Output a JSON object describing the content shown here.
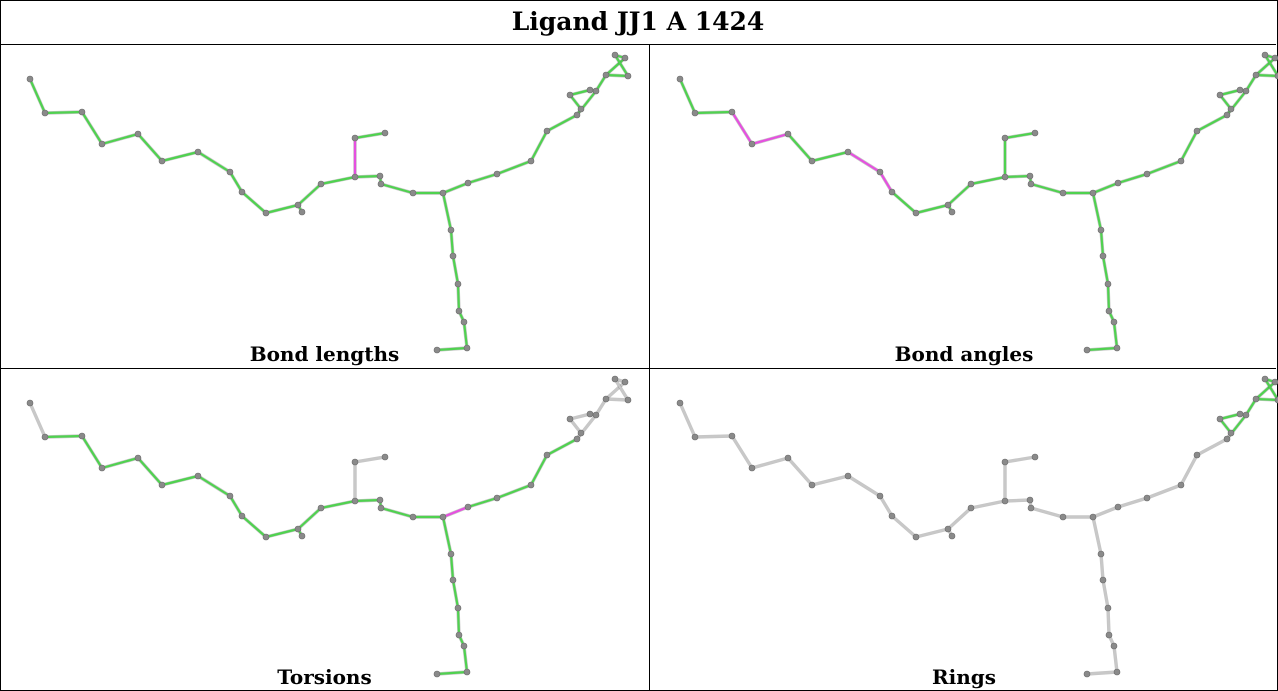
{
  "title": "Ligand JJ1 A 1424",
  "colors": {
    "pass": "#4fd24f",
    "outlier": "#e64fe0",
    "unchecked": "#c8c8c8",
    "atom": "#8a8a8a",
    "border": "#000000"
  },
  "panels": [
    {
      "key": "bond_lengths",
      "caption": "Bond lengths",
      "outlier_bonds": [
        [
          19,
          20
        ]
      ],
      "unchecked_bonds": []
    },
    {
      "key": "bond_angles",
      "caption": "Bond angles",
      "outlier_bonds": [
        [
          2,
          3
        ],
        [
          3,
          4
        ],
        [
          6,
          7
        ],
        [
          7,
          8
        ]
      ],
      "unchecked_bonds": []
    },
    {
      "key": "torsions",
      "caption": "Torsions",
      "outlier_bonds": [
        [
          25,
          31
        ]
      ],
      "unchecked_bonds": [
        [
          0,
          1
        ],
        [
          19,
          20
        ],
        [
          20,
          21
        ],
        [
          37,
          38
        ],
        [
          38,
          39
        ],
        [
          39,
          40
        ],
        [
          40,
          41
        ],
        [
          41,
          36
        ]
      ]
    },
    {
      "key": "rings",
      "caption": "Rings",
      "outlier_bonds": [],
      "unchecked_bonds": "all_except_ring"
    }
  ]
}
